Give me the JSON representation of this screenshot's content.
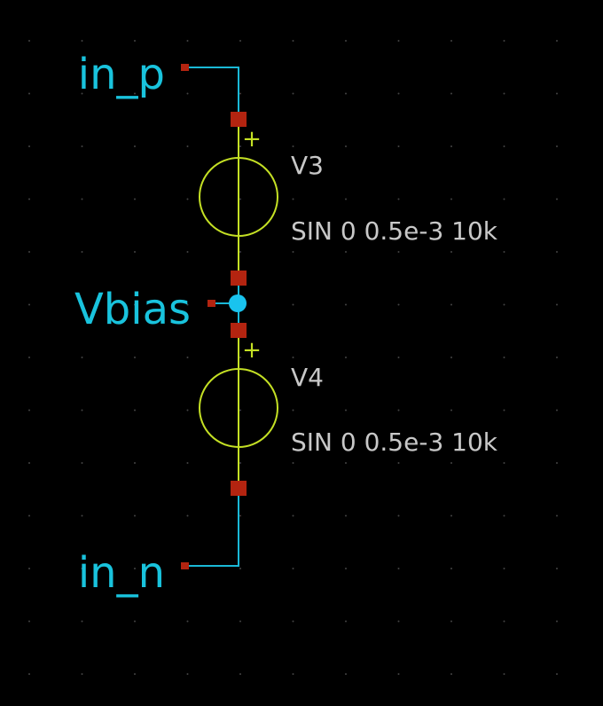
{
  "schematic": {
    "nets": {
      "in_p": "in_p",
      "vbias": "Vbias",
      "in_n": "in_n"
    },
    "components": [
      {
        "ref": "V3",
        "value": "SIN 0 0.5e-3 10k",
        "polarity": "+"
      },
      {
        "ref": "V4",
        "value": "SIN 0 0.5e-3 10k",
        "polarity": "+"
      }
    ],
    "colors": {
      "background": "#000000",
      "wire": "#1ab8d6",
      "component": "#c4e024",
      "pin": "#b32410",
      "junction": "#19c3ee",
      "net_label": "#19c3dd",
      "component_text": "#c8c8c8"
    }
  }
}
